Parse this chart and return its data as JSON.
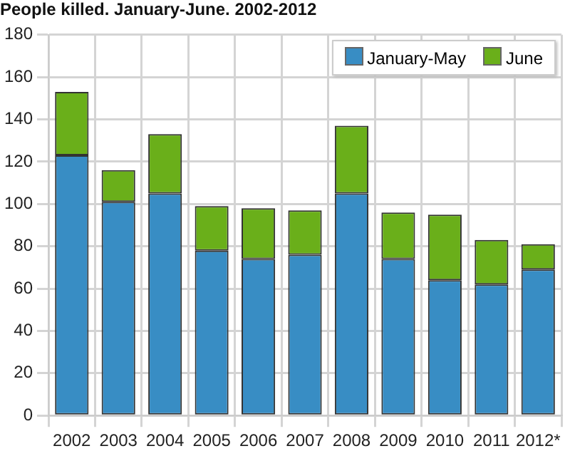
{
  "chart_data": {
    "type": "bar",
    "title": "People killed. January-June. 2002-2012",
    "categories": [
      "2002",
      "2003",
      "2004",
      "2005",
      "2006",
      "2007",
      "2008",
      "2009",
      "2010",
      "2011",
      "2012*"
    ],
    "stacked": true,
    "series": [
      {
        "name": "January-May",
        "color": "#388dc4",
        "values": [
          123,
          101,
          105,
          78,
          74,
          76,
          105,
          74,
          64,
          62,
          69
        ]
      },
      {
        "name": "June",
        "color": "#6aaf1a",
        "values": [
          30,
          15,
          28,
          21,
          24,
          21,
          32,
          22,
          31,
          21,
          12
        ]
      }
    ],
    "ylim": [
      0,
      180
    ],
    "yticks": [
      0,
      20,
      40,
      60,
      80,
      100,
      120,
      140,
      160,
      180
    ],
    "grid": true,
    "legend": "top right"
  }
}
